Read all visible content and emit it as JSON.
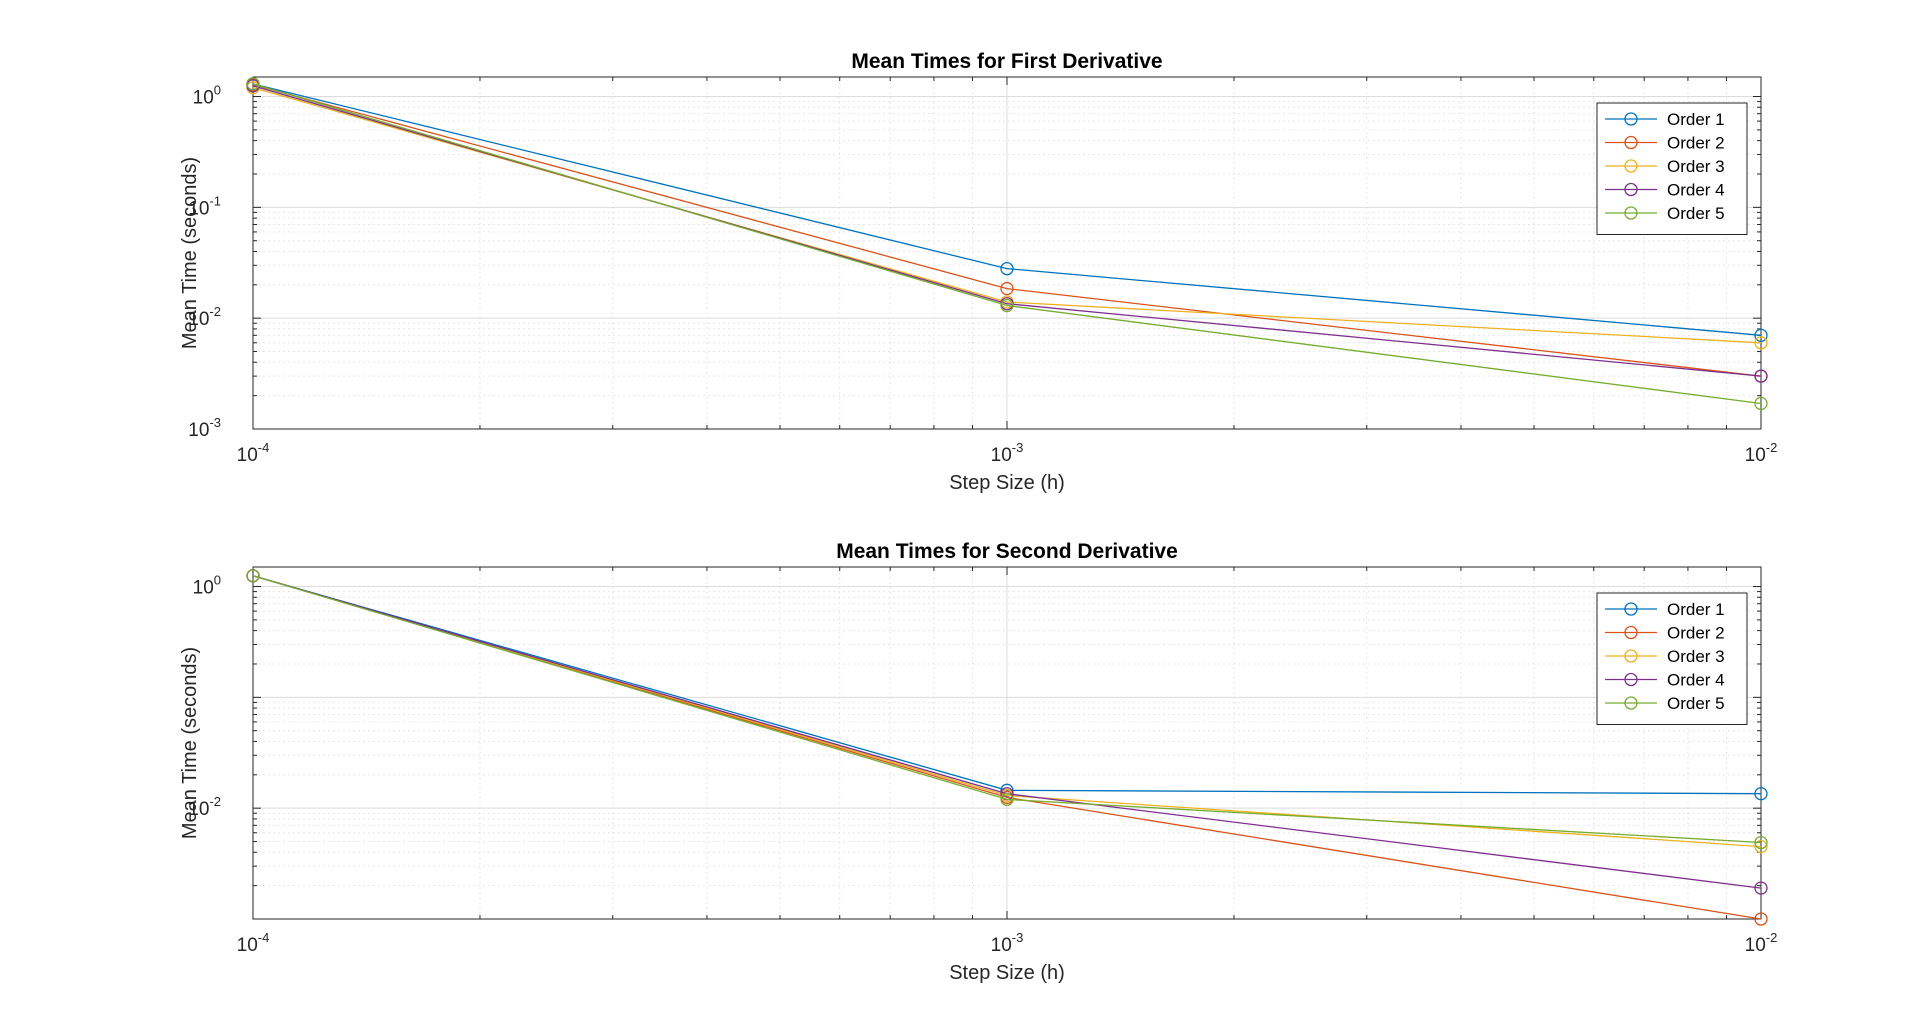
{
  "chart_data": [
    {
      "type": "line",
      "title": "Mean Times for First Derivative",
      "xlabel": "Step Size (h)",
      "ylabel": "Mean Time (seconds)",
      "xscale": "log",
      "yscale": "log",
      "xlim": [
        0.0001,
        0.01
      ],
      "ylim": [
        0.001,
        1.5
      ],
      "grid": true,
      "minor_grid": true,
      "legend_position": "top-right",
      "x": [
        0.0001,
        0.001,
        0.01
      ],
      "x_ticks": [
        {
          "base": "10",
          "exp": "-4",
          "value": 0.0001
        },
        {
          "base": "10",
          "exp": "-3",
          "value": 0.001
        },
        {
          "base": "10",
          "exp": "-2",
          "value": 0.01
        }
      ],
      "y_ticks": [
        {
          "base": "10",
          "exp": "0",
          "value": 1
        },
        {
          "base": "10",
          "exp": "-1",
          "value": 0.1
        },
        {
          "base": "10",
          "exp": "-2",
          "value": 0.01
        },
        {
          "base": "10",
          "exp": "-3",
          "value": 0.001
        }
      ],
      "series": [
        {
          "name": "Order 1",
          "color": "#0072BD",
          "values": [
            1.3,
            0.028,
            0.007
          ]
        },
        {
          "name": "Order 2",
          "color": "#D95319",
          "values": [
            1.28,
            0.0185,
            0.003
          ]
        },
        {
          "name": "Order 3",
          "color": "#EDB120",
          "values": [
            1.2,
            0.014,
            0.006
          ]
        },
        {
          "name": "Order 4",
          "color": "#7E2F8E",
          "values": [
            1.25,
            0.0135,
            0.003
          ]
        },
        {
          "name": "Order 5",
          "color": "#77AC30",
          "values": [
            1.3,
            0.013,
            0.0017
          ]
        }
      ]
    },
    {
      "type": "line",
      "title": "Mean Times for Second Derivative",
      "xlabel": "Step Size (h)",
      "ylabel": "Mean Time (seconds)",
      "xscale": "log",
      "yscale": "log",
      "xlim": [
        0.0001,
        0.01
      ],
      "ylim": [
        0.001,
        1.5
      ],
      "grid": true,
      "minor_grid": true,
      "legend_position": "top-right",
      "x": [
        0.0001,
        0.001,
        0.01
      ],
      "x_ticks": [
        {
          "base": "10",
          "exp": "-4",
          "value": 0.0001
        },
        {
          "base": "10",
          "exp": "-3",
          "value": 0.001
        },
        {
          "base": "10",
          "exp": "-2",
          "value": 0.01
        }
      ],
      "y_ticks": [
        {
          "base": "10",
          "exp": "0",
          "value": 1
        },
        {
          "base": "10",
          "exp": "-2",
          "value": 0.01
        }
      ],
      "series": [
        {
          "name": "Order 1",
          "color": "#0072BD",
          "values": [
            1.25,
            0.0145,
            0.0135
          ]
        },
        {
          "name": "Order 2",
          "color": "#D95319",
          "values": [
            1.25,
            0.0125,
            0.001
          ]
        },
        {
          "name": "Order 3",
          "color": "#EDB120",
          "values": [
            1.25,
            0.013,
            0.0045
          ]
        },
        {
          "name": "Order 4",
          "color": "#7E2F8E",
          "values": [
            1.25,
            0.0135,
            0.0019
          ]
        },
        {
          "name": "Order 5",
          "color": "#77AC30",
          "values": [
            1.25,
            0.012,
            0.0049
          ]
        }
      ]
    }
  ]
}
